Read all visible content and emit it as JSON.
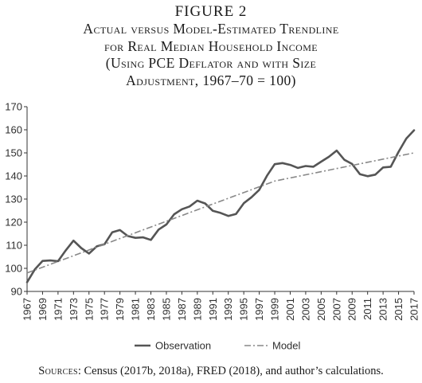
{
  "figure": {
    "label": "FIGURE 2",
    "title_lines": [
      "Actual versus Model-Estimated Trendline",
      "for Real Median Household Income",
      "(Using PCE Deflator and with Size",
      "Adjustment, 1967–70 = 100)"
    ]
  },
  "source": {
    "label": "Sources",
    "text": ": Census (2017b, 2018a), FRED (2018), and author’s calculations."
  },
  "chart_data": {
    "type": "line",
    "title": "",
    "xlabel": "",
    "ylabel": "",
    "ylim": [
      90,
      170
    ],
    "yticks": [
      90,
      100,
      110,
      120,
      130,
      140,
      150,
      160,
      170
    ],
    "xlim": [
      1967,
      2017
    ],
    "xticks": [
      1967,
      1969,
      1971,
      1973,
      1975,
      1977,
      1979,
      1981,
      1983,
      1985,
      1987,
      1989,
      1991,
      1993,
      1995,
      1997,
      1999,
      2001,
      2003,
      2005,
      2007,
      2009,
      2011,
      2013,
      2015,
      2017
    ],
    "grid": false,
    "legend_position": "bottom",
    "series": [
      {
        "name": "Observation",
        "style": "solid",
        "color": "#555555",
        "x": [
          1967,
          1968,
          1969,
          1970,
          1971,
          1972,
          1973,
          1974,
          1975,
          1976,
          1977,
          1978,
          1979,
          1980,
          1981,
          1982,
          1983,
          1984,
          1985,
          1986,
          1987,
          1988,
          1989,
          1990,
          1991,
          1992,
          1993,
          1994,
          1995,
          1996,
          1997,
          1998,
          1999,
          2000,
          2001,
          2002,
          2003,
          2004,
          2005,
          2006,
          2007,
          2008,
          2009,
          2010,
          2011,
          2012,
          2013,
          2014,
          2015,
          2016,
          2017
        ],
        "y": [
          94.0,
          99.5,
          103.2,
          103.4,
          103.1,
          107.8,
          112.0,
          108.8,
          106.4,
          109.5,
          110.4,
          115.6,
          116.6,
          114.0,
          113.2,
          113.4,
          112.3,
          116.8,
          119.0,
          123.4,
          125.6,
          126.8,
          129.3,
          128.1,
          124.9,
          124.0,
          122.7,
          123.5,
          128.2,
          130.8,
          134.0,
          140.1,
          145.1,
          145.6,
          144.8,
          143.5,
          144.3,
          144.0,
          146.2,
          148.3,
          151.0,
          147.0,
          145.2,
          140.8,
          139.9,
          140.6,
          143.7,
          144.0,
          150.5,
          156.2,
          159.8
        ]
      },
      {
        "name": "Model",
        "style": "dash-dot",
        "color": "#888888",
        "x": [
          1967,
          1999,
          2017
        ],
        "y": [
          98.0,
          137.8,
          150.0
        ]
      }
    ]
  }
}
